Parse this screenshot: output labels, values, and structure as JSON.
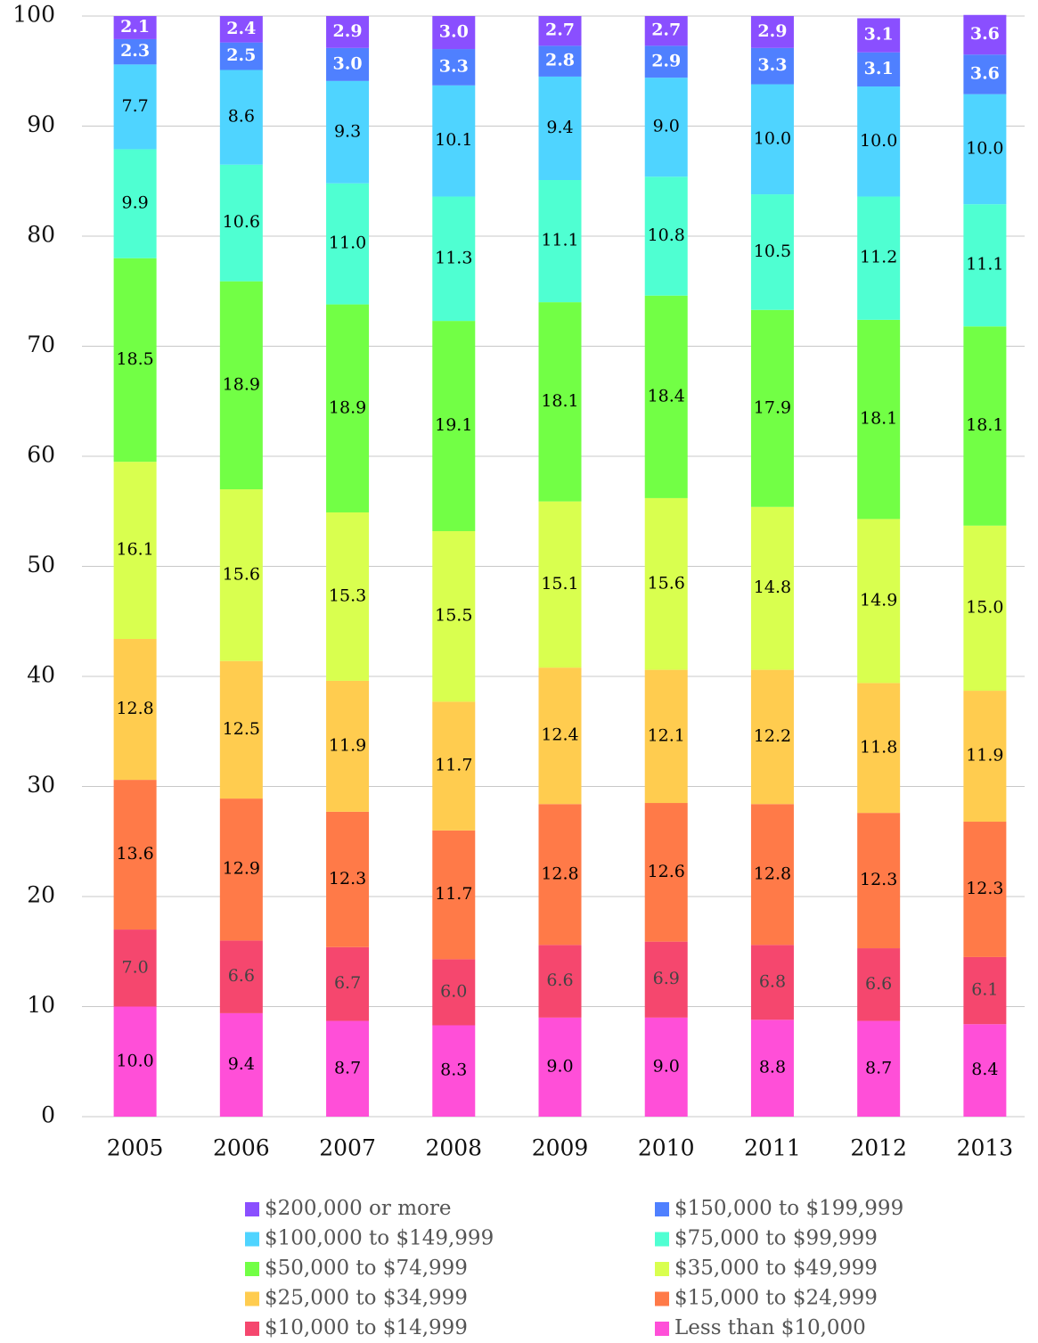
{
  "chart_data": {
    "type": "stacked-bar",
    "categories": [
      "2005",
      "2006",
      "2007",
      "2008",
      "2009",
      "2010",
      "2011",
      "2012",
      "2013"
    ],
    "series": [
      {
        "name": "Less than $10,000",
        "color": "#ff4fd8",
        "values": [
          10.0,
          9.4,
          8.7,
          8.3,
          9.0,
          9.0,
          8.8,
          8.7,
          8.4
        ],
        "value_labels": [
          "10.0",
          "9.4",
          "8.7",
          "8.3",
          "9.0",
          "9.0",
          "8.8",
          "8.7",
          "8.4"
        ]
      },
      {
        "name": "$10,000 to $14,999",
        "color": "#f5476e",
        "values": [
          7.0,
          6.6,
          6.7,
          6.0,
          6.6,
          6.9,
          6.8,
          6.6,
          6.1
        ],
        "value_labels": [
          "7.0",
          "6.6",
          "6.7",
          "6.0",
          "6.6",
          "6.9",
          "6.8",
          "6.6",
          "6.1"
        ]
      },
      {
        "name": "$15,000 to $24,999",
        "color": "#ff7a48",
        "values": [
          13.6,
          12.9,
          12.3,
          11.7,
          12.8,
          12.6,
          12.8,
          12.3,
          12.3
        ],
        "value_labels": [
          "13.6",
          "12.9",
          "12.3",
          "11.7",
          "12.8",
          "12.6",
          "12.8",
          "12.3",
          "12.3"
        ]
      },
      {
        "name": "$25,000 to $34,999",
        "color": "#ffcc4f",
        "values": [
          12.8,
          12.5,
          11.9,
          11.7,
          12.4,
          12.1,
          12.2,
          11.8,
          11.9
        ],
        "value_labels": [
          "12.8",
          "12.5",
          "11.9",
          "11.7",
          "12.4",
          "12.1",
          "12.2",
          "11.8",
          "11.9"
        ]
      },
      {
        "name": "$35,000 to $49,999",
        "color": "#d9ff4f",
        "values": [
          16.1,
          15.6,
          15.3,
          15.5,
          15.1,
          15.6,
          14.8,
          14.9,
          15.0
        ],
        "value_labels": [
          "16.1",
          "15.6",
          "15.3",
          "15.5",
          "15.1",
          "15.6",
          "14.8",
          "14.9",
          "15.0"
        ]
      },
      {
        "name": "$50,000 to $74,999",
        "color": "#72ff45",
        "values": [
          18.5,
          18.9,
          18.9,
          19.1,
          18.1,
          18.4,
          17.9,
          18.1,
          18.1
        ],
        "value_labels": [
          "18.5",
          "18.9",
          "18.9",
          "19.1",
          "18.1",
          "18.4",
          "17.9",
          "18.1",
          "18.1"
        ]
      },
      {
        "name": "$75,000 to $99,999",
        "color": "#4fffd2",
        "values": [
          9.9,
          10.6,
          11.0,
          11.3,
          11.1,
          10.8,
          10.5,
          11.2,
          11.1
        ],
        "value_labels": [
          "9.9",
          "10.6",
          "11.0",
          "11.3",
          "11.1",
          "10.8",
          "10.5",
          "11.2",
          "11.1"
        ]
      },
      {
        "name": "$100,000 to $149,999",
        "color": "#4fd4ff",
        "values": [
          7.7,
          8.6,
          9.3,
          10.1,
          9.4,
          9.0,
          10.0,
          10.0,
          10.0
        ],
        "value_labels": [
          "7.7",
          "8.6",
          "9.3",
          "10.1",
          "9.4",
          "9.0",
          "10.0",
          "10.0",
          "10.0"
        ]
      },
      {
        "name": "$150,000 to $199,999",
        "color": "#4f80ff",
        "values": [
          2.3,
          2.5,
          3.0,
          3.3,
          2.8,
          2.9,
          3.3,
          3.1,
          3.6
        ],
        "value_labels": [
          "2.3",
          "2.5",
          "3.0",
          "3.3",
          "2.8",
          "2.9",
          "3.3",
          "3.1",
          "3.6"
        ]
      },
      {
        "name": "$200,000 or more",
        "color": "#8a4fff",
        "values": [
          2.1,
          2.4,
          2.9,
          3.0,
          2.7,
          2.7,
          2.9,
          3.1,
          3.6
        ],
        "value_labels": [
          "2.1",
          "2.4",
          "2.9",
          "3.0",
          "2.7",
          "2.7",
          "2.9",
          "3.1",
          "3.6"
        ]
      }
    ],
    "ylim": [
      0,
      100
    ],
    "yticks": [
      0,
      10,
      20,
      30,
      40,
      50,
      60,
      70,
      80,
      90,
      100
    ],
    "grid": true
  }
}
